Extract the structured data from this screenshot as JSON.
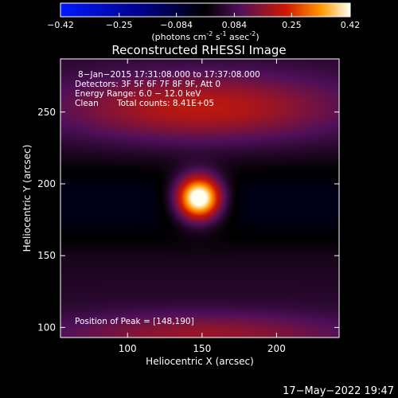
{
  "chart_data": {
    "type": "heatmap",
    "title": "Reconstructed RHESSI Image",
    "xlabel": "Heliocentric X (arcsec)",
    "ylabel": "Heliocentric Y (arcsec)",
    "xlim": [
      55,
      242
    ],
    "ylim": [
      93,
      287
    ],
    "x_ticks": [
      100,
      150,
      200
    ],
    "y_ticks": [
      100,
      150,
      200,
      250
    ],
    "colorbar": {
      "label_main": "(photons cm",
      "label_sup1": "-2",
      "label_mid1": " s",
      "label_sup2": "-1",
      "label_mid2": " asec",
      "label_sup3": "-2",
      "label_end": ")",
      "range": [
        -0.42,
        0.42
      ],
      "ticks": [
        {
          "value": -0.42,
          "label": "−0.42"
        },
        {
          "value": -0.25,
          "label": "−0.25"
        },
        {
          "value": -0.084,
          "label": "−0.084"
        },
        {
          "value": 0.084,
          "label": "0.084"
        },
        {
          "value": 0.25,
          "label": "0.25"
        },
        {
          "value": 0.42,
          "label": "0.42"
        }
      ],
      "colormap": "blue-black-purple-red-yellow-white"
    },
    "annotations": {
      "time_range": "8−Jan−2015 17:31:08.000 to 17:37:08.000",
      "detectors": "Detectors: 3F 5F 6F 7F 8F 9F, Att 0",
      "energy_range": "Energy Range: 6.0 − 12.0 keV",
      "clean_label": "Clean",
      "total_counts": "Total counts: 8.41E+05",
      "peak": "Position of Peak = [148,190]"
    },
    "peak": {
      "x": 148,
      "y": 190,
      "value": 0.42
    },
    "features": [
      {
        "type": "gaussian",
        "x": 148,
        "y": 190,
        "sx": 11,
        "sy": 11,
        "amp": 0.5
      },
      {
        "type": "gaussian",
        "x": 150,
        "y": 253,
        "sx": 70,
        "sy": 17,
        "amp": 0.17
      },
      {
        "type": "gaussian",
        "x": 150,
        "y": 95,
        "sx": 75,
        "sy": 11,
        "amp": 0.13
      },
      {
        "type": "band",
        "y": 186,
        "spread": 22,
        "amp": -0.08
      }
    ]
  },
  "footer": {
    "timestamp": "17−May−2022 19:47"
  }
}
